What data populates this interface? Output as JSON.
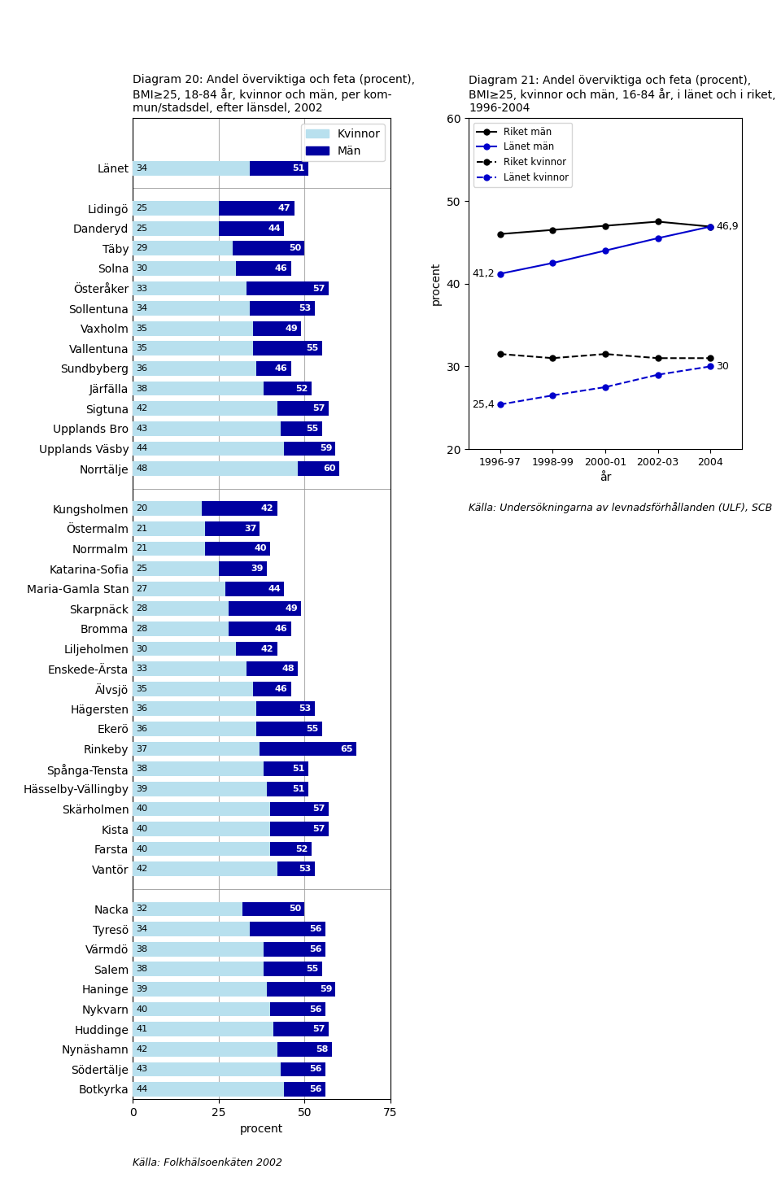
{
  "chart_data": [
    {
      "type": "bar",
      "orientation": "horizontal",
      "title": "Diagram 20: Andel överviktiga och feta (procent),\nBMI≥25, 18-84 år, kvinnor och män, per kom-\nmun/stadsdel, efter länsdel, 2002",
      "xlabel": "procent",
      "source": "Källa: Folkhälsoenkäten 2002",
      "categories": [
        "Länet",
        null,
        "Lidingö",
        "Danderyd",
        "Täby",
        "Solna",
        "Österåker",
        "Sollentuna",
        "Vaxholm",
        "Vallentuna",
        "Sundbyberg",
        "Järfälla",
        "Sigtuna",
        "Upplands Bro",
        "Upplands Väsby",
        "Norrtälje",
        null,
        "Kungsholmen",
        "Östermalm",
        "Norrmalm",
        "Katarina-Sofia",
        "Maria-Gamla Stan",
        "Skarpnäck",
        "Bromma",
        "Liljeholmen",
        "Enskede-Ärsta",
        "Älvsjö",
        "Hägersten",
        "Ekerö",
        "Rinkeby",
        "Spånga-Tensta",
        "Hässelby-Vällingby",
        "Skärholmen",
        "Kista",
        "Farsta",
        "Vantör",
        null,
        "Nacka",
        "Tyresö",
        "Värmdö",
        "Salem",
        "Haninge",
        "Nykvarn",
        "Huddinge",
        "Nynäshamn",
        "Södertälje",
        "Botkyrka"
      ],
      "series": [
        {
          "name": "Kvinnor",
          "color": "#b8e0ee",
          "values": [
            34,
            null,
            25,
            25,
            29,
            30,
            33,
            34,
            35,
            35,
            36,
            38,
            42,
            43,
            44,
            48,
            null,
            20,
            21,
            21,
            25,
            27,
            28,
            28,
            30,
            33,
            35,
            36,
            36,
            37,
            38,
            39,
            40,
            40,
            40,
            42,
            null,
            32,
            34,
            38,
            38,
            39,
            40,
            41,
            42,
            43,
            44
          ]
        },
        {
          "name": "Män",
          "color": "#0000a0",
          "values": [
            51,
            null,
            47,
            44,
            50,
            46,
            57,
            53,
            49,
            55,
            46,
            52,
            57,
            55,
            59,
            60,
            null,
            42,
            37,
            40,
            39,
            44,
            49,
            46,
            42,
            48,
            46,
            53,
            55,
            65,
            51,
            51,
            57,
            57,
            52,
            53,
            null,
            50,
            56,
            56,
            55,
            59,
            56,
            57,
            58,
            56,
            56
          ]
        }
      ],
      "xlim": [
        0,
        75
      ],
      "xticks": [
        0,
        25,
        50,
        75
      ],
      "grid": true,
      "legend": "upper right",
      "data_labels": true
    },
    {
      "type": "line",
      "title": "Diagram 21: Andel överviktiga och feta (procent),\nBMI≥25, kvinnor och män, 16-84 år, i länet och i riket,\n1996-2004",
      "xlabel": "år",
      "ylabel": "procent",
      "source": "Källa: Undersökningarna av levnadsförhållanden (ULF), SCB",
      "categories": [
        "1996-97",
        "1998-99",
        "2000-01",
        "2002-03",
        "2004"
      ],
      "series": [
        {
          "name": "Riket män",
          "color": "#000000",
          "line_style": "solid",
          "marker": "o",
          "values": [
            46.0,
            46.5,
            47.0,
            47.5,
            46.9
          ]
        },
        {
          "name": "Länet män",
          "color": "#0000cc",
          "line_style": "solid",
          "marker": "o",
          "values": [
            41.2,
            42.5,
            44.0,
            45.5,
            46.9
          ]
        },
        {
          "name": "Riket kvinnor",
          "color": "#000000",
          "line_style": "dashed",
          "marker": "o",
          "values": [
            31.5,
            31.0,
            31.5,
            31.0,
            31.0
          ]
        },
        {
          "name": "Länet kvinnor",
          "color": "#0000cc",
          "line_style": "dashed",
          "marker": "o",
          "values": [
            25.4,
            26.5,
            27.5,
            29.0,
            30.0
          ]
        }
      ],
      "ylim": [
        20,
        60
      ],
      "yticks": [
        20,
        30,
        40,
        50,
        60
      ],
      "grid": false,
      "legend": "upper left",
      "annotations": [
        {
          "text": "46,9",
          "x": "2004",
          "y": 46.9
        },
        {
          "text": "41,2",
          "x": "1996-97",
          "y": 41.2
        },
        {
          "text": "30",
          "x": "2004",
          "y": 30.0
        },
        {
          "text": "25,4",
          "x": "1996-97",
          "y": 25.4
        }
      ]
    }
  ]
}
